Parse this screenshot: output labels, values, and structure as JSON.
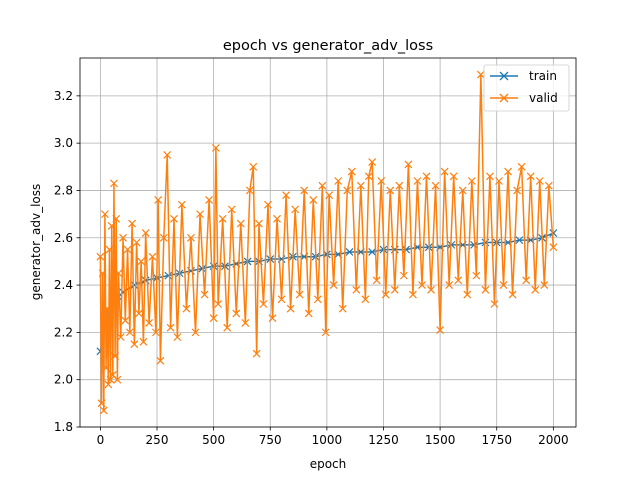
{
  "chart_data": {
    "type": "line",
    "title": "epoch vs generator_adv_loss",
    "xlabel": "epoch",
    "ylabel": "generator_adv_loss",
    "xlim": [
      -90,
      2100
    ],
    "ylim": [
      1.8,
      3.36
    ],
    "xticks": [
      0,
      250,
      500,
      750,
      1000,
      1250,
      1500,
      1750,
      2000
    ],
    "xtick_labels": [
      "0",
      "250",
      "500",
      "750",
      "1000",
      "1250",
      "1500",
      "1750",
      "2000"
    ],
    "yticks": [
      1.8,
      2.0,
      2.2,
      2.4,
      2.6,
      2.8,
      3.0,
      3.2
    ],
    "ytick_labels": [
      "1.8",
      "2.0",
      "2.2",
      "2.4",
      "2.6",
      "2.8",
      "3.0",
      "3.2"
    ],
    "grid": true,
    "legend_position": "top-right",
    "marker": "x",
    "series": [
      {
        "name": "train",
        "color": "#1f77b4",
        "x": [
          0,
          20,
          40,
          60,
          80,
          100,
          150,
          200,
          250,
          300,
          350,
          400,
          450,
          500,
          550,
          600,
          650,
          700,
          750,
          800,
          850,
          900,
          950,
          1000,
          1050,
          1100,
          1150,
          1200,
          1250,
          1300,
          1350,
          1400,
          1450,
          1500,
          1550,
          1600,
          1650,
          1700,
          1750,
          1800,
          1850,
          1900,
          1950,
          2000
        ],
        "values": [
          2.12,
          2.22,
          2.28,
          2.32,
          2.35,
          2.37,
          2.4,
          2.42,
          2.43,
          2.44,
          2.45,
          2.46,
          2.47,
          2.48,
          2.48,
          2.49,
          2.5,
          2.5,
          2.51,
          2.51,
          2.52,
          2.52,
          2.52,
          2.53,
          2.53,
          2.54,
          2.54,
          2.54,
          2.55,
          2.55,
          2.55,
          2.56,
          2.56,
          2.56,
          2.57,
          2.57,
          2.57,
          2.58,
          2.58,
          2.58,
          2.59,
          2.59,
          2.6,
          2.62
        ]
      },
      {
        "name": "valid",
        "color": "#ff7f0e",
        "x": [
          0,
          5,
          10,
          15,
          20,
          25,
          30,
          35,
          40,
          45,
          50,
          55,
          60,
          65,
          70,
          75,
          80,
          90,
          100,
          110,
          120,
          130,
          140,
          150,
          160,
          170,
          180,
          190,
          200,
          215,
          230,
          245,
          255,
          265,
          280,
          295,
          310,
          325,
          340,
          360,
          380,
          400,
          420,
          440,
          460,
          480,
          500,
          510,
          520,
          540,
          560,
          580,
          600,
          620,
          640,
          660,
          675,
          690,
          700,
          720,
          740,
          760,
          780,
          800,
          820,
          840,
          860,
          880,
          900,
          920,
          940,
          960,
          980,
          995,
          1010,
          1030,
          1050,
          1070,
          1090,
          1110,
          1130,
          1150,
          1170,
          1185,
          1200,
          1220,
          1240,
          1260,
          1280,
          1300,
          1320,
          1340,
          1360,
          1380,
          1400,
          1420,
          1440,
          1460,
          1480,
          1500,
          1520,
          1540,
          1560,
          1580,
          1600,
          1620,
          1640,
          1660,
          1680,
          1700,
          1720,
          1740,
          1760,
          1780,
          1800,
          1820,
          1840,
          1860,
          1880,
          1900,
          1920,
          1940,
          1960,
          1980,
          2000
        ],
        "values": [
          2.52,
          1.9,
          2.45,
          1.87,
          2.7,
          2.05,
          2.3,
          1.98,
          2.55,
          2.0,
          2.65,
          2.02,
          2.83,
          2.1,
          2.68,
          2.0,
          2.45,
          2.18,
          2.6,
          2.25,
          2.55,
          2.2,
          2.66,
          2.15,
          2.58,
          2.28,
          2.5,
          2.16,
          2.62,
          2.24,
          2.52,
          2.2,
          2.76,
          2.08,
          2.6,
          2.95,
          2.22,
          2.68,
          2.18,
          2.74,
          2.3,
          2.6,
          2.2,
          2.7,
          2.36,
          2.76,
          2.26,
          2.98,
          2.32,
          2.68,
          2.22,
          2.72,
          2.28,
          2.66,
          2.24,
          2.8,
          2.9,
          2.11,
          2.66,
          2.32,
          2.74,
          2.26,
          2.68,
          2.34,
          2.78,
          2.3,
          2.72,
          2.36,
          2.8,
          2.28,
          2.76,
          2.34,
          2.82,
          2.2,
          2.78,
          2.4,
          2.84,
          2.3,
          2.8,
          2.88,
          2.38,
          2.82,
          2.34,
          2.86,
          2.92,
          2.42,
          2.84,
          2.36,
          2.8,
          2.38,
          2.82,
          2.44,
          2.91,
          2.36,
          2.84,
          2.4,
          2.86,
          2.38,
          2.82,
          2.21,
          2.88,
          2.4,
          2.86,
          2.42,
          2.8,
          2.36,
          2.84,
          2.44,
          3.29,
          2.38,
          2.86,
          2.32,
          2.84,
          2.4,
          2.88,
          2.36,
          2.8,
          2.9,
          2.42,
          2.86,
          2.38,
          2.84,
          2.4,
          2.82,
          2.56
        ]
      }
    ]
  }
}
